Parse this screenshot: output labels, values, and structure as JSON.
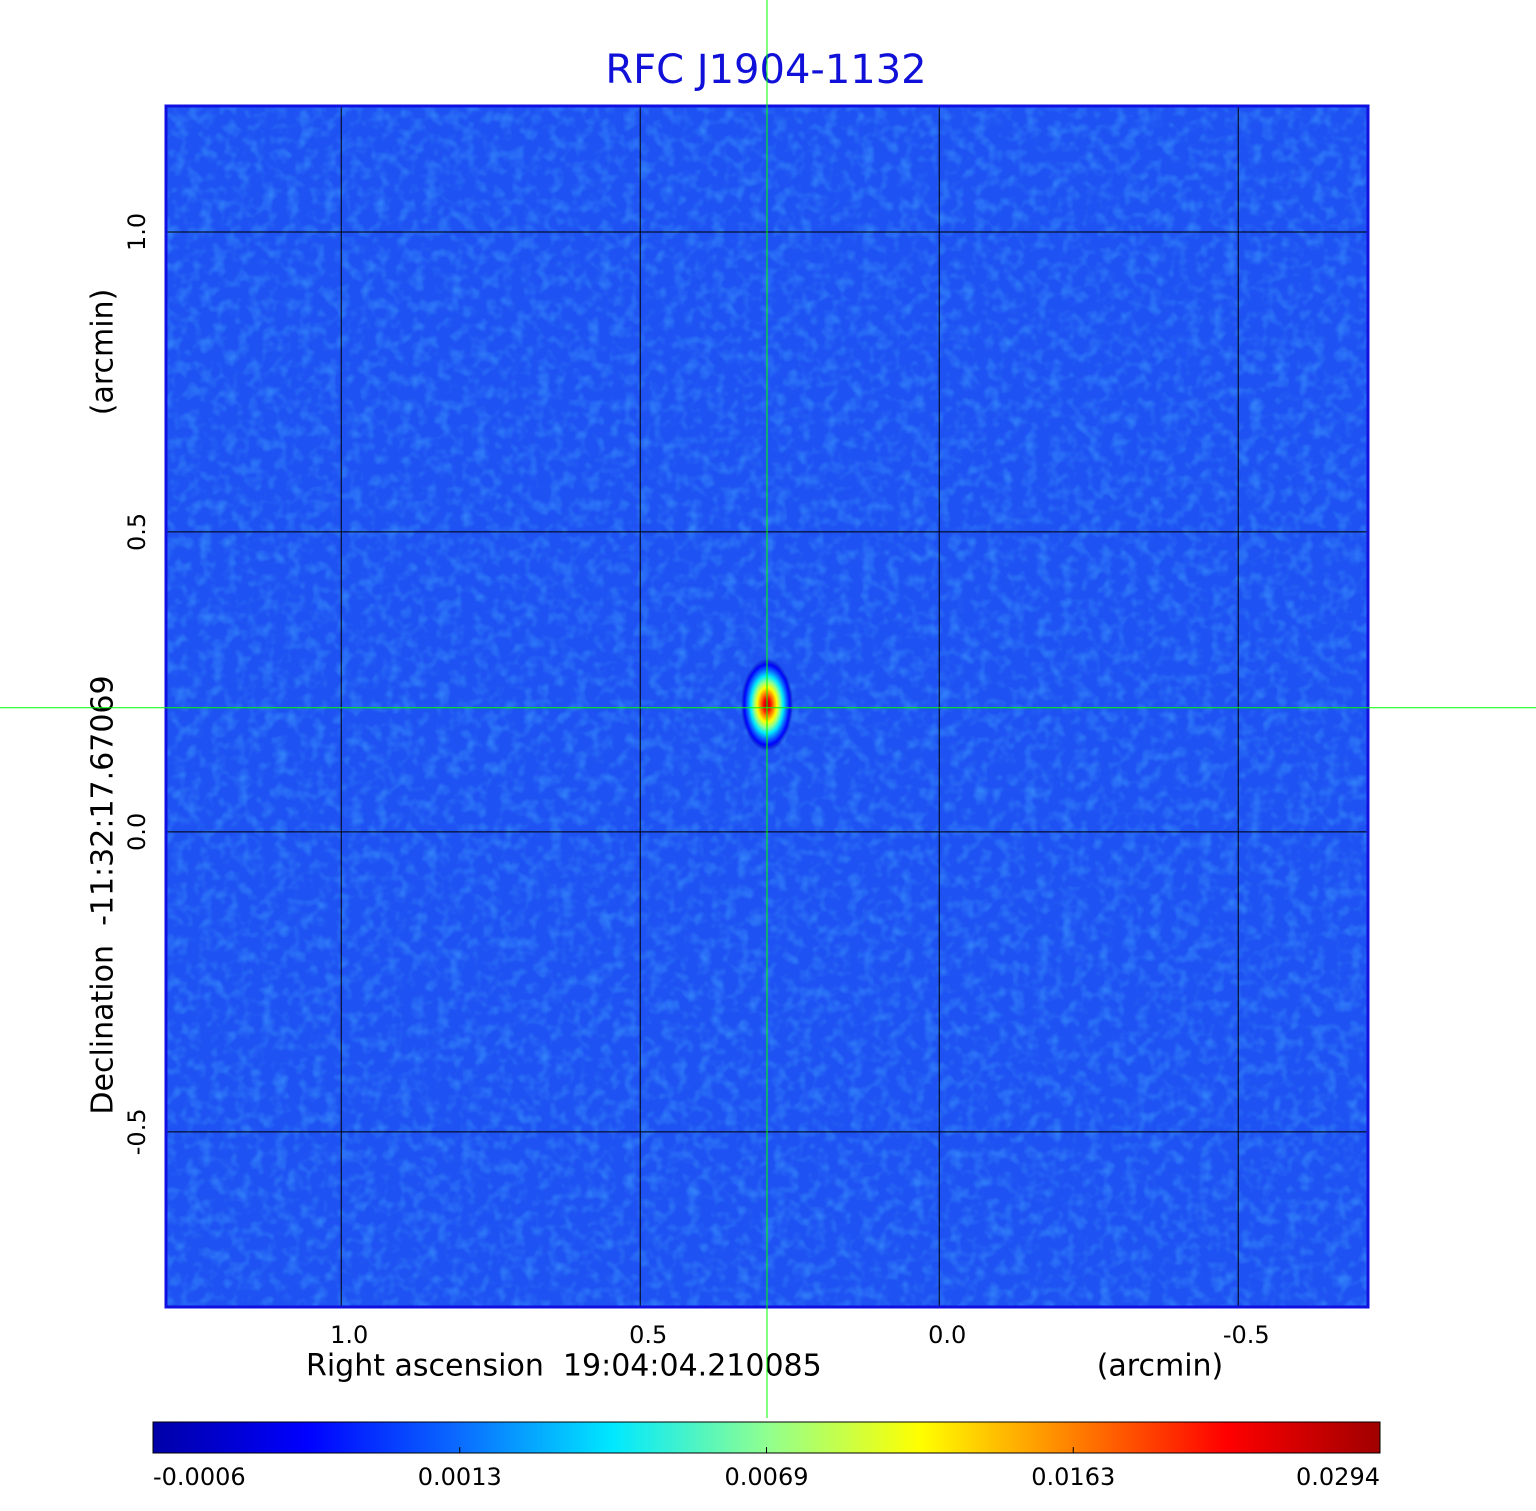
{
  "chart_data": {
    "type": "image",
    "title": "RFC J1904-1132",
    "x_label": "Right ascension  19:04:04.210085",
    "x_unit": "(arcmin)",
    "y_label": "Declination  -11:32:17.67069",
    "y_unit": "(arcmin)",
    "xlim": [
      1.293,
      -0.717
    ],
    "ylim": [
      -0.792,
      1.21
    ],
    "xticks": [
      {
        "value": 1,
        "label": "1.0"
      },
      0.5,
      {
        "value": 0,
        "label": "0.0"
      },
      -0.5
    ],
    "yticks": [
      {
        "value": 1,
        "label": "1.0"
      },
      0.5,
      {
        "value": 0,
        "label": "0.0"
      },
      -0.5
    ],
    "grid": true,
    "crosshair": {
      "x": 0.288,
      "y": 0.207,
      "color": "#00ff00"
    },
    "colorbar": {
      "ticks": [
        -0.0006,
        0.0013,
        0.0069,
        0.0163,
        0.0294
      ],
      "colormap": [
        "#0000a8",
        "#0000ff",
        "#0a6cff",
        "#00e8ff",
        "#90ff90",
        "#ffff00",
        "#ff8000",
        "#ff0000",
        "#a00000"
      ]
    }
  }
}
